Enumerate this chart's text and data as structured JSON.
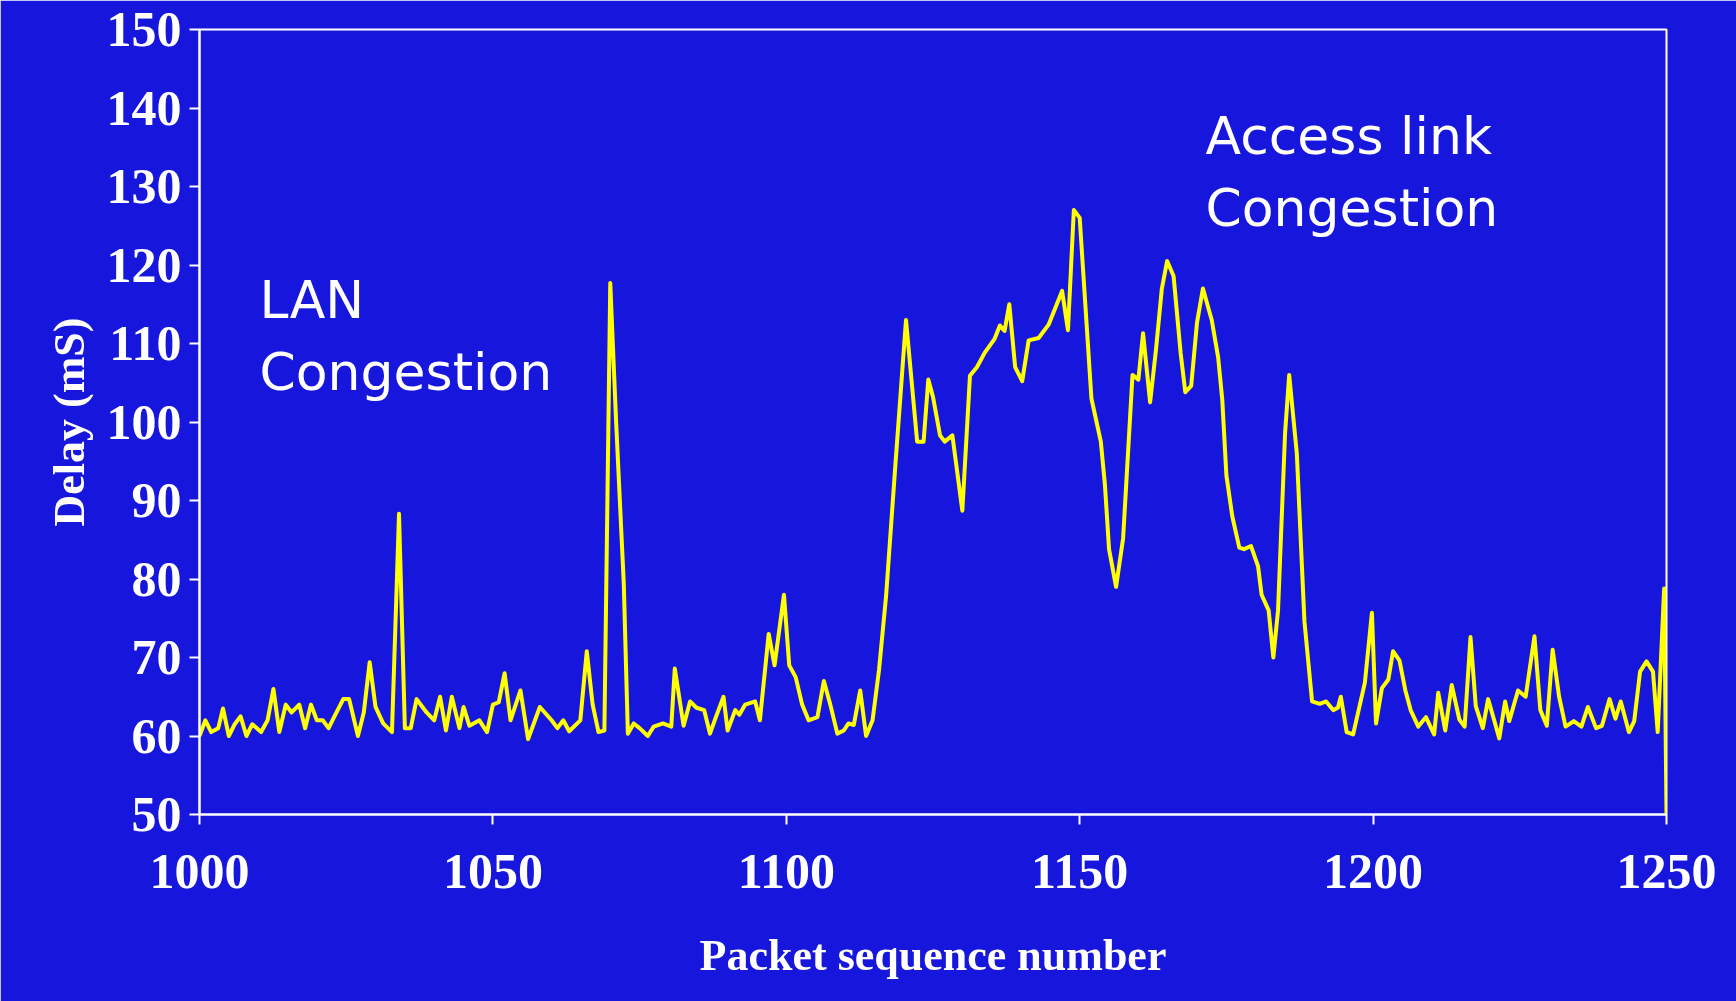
{
  "chart_data": {
    "type": "line",
    "xlabel": "Packet sequence number",
    "ylabel": "Delay (mS)",
    "xlim": [
      1000,
      1250
    ],
    "ylim": [
      50,
      150
    ],
    "xticks": [
      1000,
      1050,
      1100,
      1150,
      1200,
      1250
    ],
    "yticks": [
      50,
      60,
      70,
      80,
      90,
      100,
      110,
      120,
      130,
      140,
      150
    ],
    "grid": false,
    "marker": "none",
    "line_style": "solid",
    "annotations": [
      "LAN\nCongestion",
      "Access link\nCongestion"
    ],
    "series": [
      {
        "color": "#ffff00",
        "x": [
          1000,
          1001,
          1002,
          1003.2,
          1004,
          1005,
          1006,
          1007,
          1008,
          1009,
          1010.5,
          1011.6,
          1012.6,
          1013.6,
          1014.7,
          1015.7,
          1017,
          1018,
          1019,
          1020,
          1021,
          1022,
          1023,
          1024.5,
          1025.5,
          1027,
          1028,
          1029,
          1030,
          1031.3,
          1032.8,
          1034,
          1035,
          1036,
          1037,
          1038.7,
          1040,
          1041,
          1042,
          1043,
          1044.3,
          1045,
          1046,
          1047.7,
          1049,
          1050,
          1051,
          1052,
          1053,
          1054.7,
          1056,
          1058,
          1060,
          1061,
          1062,
          1063,
          1064.9,
          1066,
          1067,
          1068,
          1069,
          1070,
          1071,
          1072.3,
          1073,
          1074,
          1075,
          1076.4,
          1077.4,
          1079,
          1080.4,
          1081,
          1082.5,
          1083.6,
          1084.7,
          1086,
          1087,
          1088,
          1089.3,
          1090,
          1091.3,
          1092,
          1093,
          1094.7,
          1095.5,
          1097,
          1098,
          1099.6,
          1100.5,
          1101.6,
          1102.7,
          1103.8,
          1105.3,
          1106.4,
          1107.5,
          1108.7,
          1109.8,
          1110.6,
          1111.5,
          1112.6,
          1113.6,
          1114.7,
          1115.8,
          1117,
          1118.5,
          1120.4,
          1122.3,
          1123.4,
          1124.2,
          1125,
          1126.2,
          1127,
          1128.3,
          1130,
          1131.3,
          1132.5,
          1133.8,
          1135.5,
          1136.4,
          1137.2,
          1138,
          1139,
          1140.2,
          1141.3,
          1143,
          1144.7,
          1147,
          1148,
          1149,
          1150,
          1152,
          1153.6,
          1154.3,
          1155,
          1156.2,
          1157.4,
          1159,
          1160,
          1160.8,
          1162,
          1163,
          1164,
          1164.9,
          1166,
          1167.2,
          1168,
          1169,
          1170,
          1171,
          1172.5,
          1173.6,
          1174.3,
          1175,
          1176,
          1177.2,
          1178,
          1179.2,
          1180.4,
          1181,
          1182.2,
          1183,
          1183.8,
          1185,
          1185.7,
          1187,
          1188.3,
          1189.6,
          1190.9,
          1192,
          1193.2,
          1194,
          1194.5,
          1195.5,
          1196.6,
          1198.6,
          1199.8,
          1200.5,
          1201.5,
          1202.6,
          1203.4,
          1204.5,
          1205.5,
          1206.4,
          1207.7,
          1209,
          1210.4,
          1211.1,
          1212.3,
          1213.4,
          1214.7,
          1215.6,
          1216.6,
          1217.5,
          1218.7,
          1219.6,
          1220.6,
          1221.5,
          1222.5,
          1223.2,
          1224.7,
          1226,
          1227.5,
          1228.5,
          1229.6,
          1230.6,
          1231.7,
          1232.8,
          1234.2,
          1235.5,
          1236.6,
          1238,
          1239,
          1240.3,
          1241.3,
          1242.2,
          1243.6,
          1244.5,
          1245.5,
          1246.6,
          1247.7,
          1248.5,
          1249.6,
          1250
        ],
        "values": [
          60,
          62,
          60.5,
          61,
          63.5,
          60,
          61.5,
          62.5,
          60,
          61.5,
          60.5,
          62,
          66,
          60.5,
          64,
          63,
          64,
          61,
          64,
          62,
          62,
          61,
          62.5,
          64.7,
          64.7,
          60,
          63,
          69.4,
          63.7,
          61.6,
          60.5,
          88.3,
          61,
          61,
          64.7,
          63,
          62,
          65,
          60.7,
          65,
          61,
          63.7,
          61.3,
          62,
          60.5,
          64,
          64.3,
          68,
          62,
          65.8,
          59.6,
          63.7,
          62,
          61,
          62,
          60.6,
          62,
          70.8,
          64,
          60.5,
          60.7,
          117.7,
          100,
          79.5,
          60.3,
          61.6,
          61,
          60,
          61.2,
          61.6,
          61.2,
          68.6,
          61.3,
          64.4,
          63.6,
          63.3,
          60.3,
          62.4,
          65,
          60.7,
          63.3,
          62.7,
          64,
          64.4,
          62,
          73,
          69,
          78,
          69,
          67.5,
          64,
          62,
          62.4,
          67,
          64,
          60.3,
          60.7,
          61.6,
          61.4,
          65.8,
          60,
          62,
          68.4,
          77.8,
          93.6,
          113,
          97.5,
          97.5,
          105.4,
          103.2,
          98.3,
          97.5,
          98.3,
          88.7,
          105.9,
          107,
          108.8,
          110.6,
          112.3,
          111.6,
          115,
          107,
          105.2,
          110.4,
          110.7,
          112.4,
          116.7,
          111.7,
          127,
          126,
          103,
          97.5,
          92,
          83.8,
          79,
          85.2,
          106,
          105.4,
          111.3,
          102.5,
          109.2,
          117,
          120.5,
          118.6,
          108.8,
          103.8,
          104.6,
          112.7,
          117,
          113,
          108.2,
          102.8,
          93.2,
          88,
          84,
          83.8,
          84.2,
          81.6,
          78,
          76,
          70,
          76,
          98.6,
          106,
          96,
          74.6,
          64.4,
          64.1,
          64.4,
          63.3,
          63.6,
          65,
          60.5,
          60.2,
          66.8,
          75.7,
          61.6,
          66.1,
          67.2,
          70.8,
          69.6,
          65.8,
          63.3,
          61.2,
          62.4,
          60.2,
          65.5,
          60.7,
          66.5,
          62.1,
          61.2,
          72.6,
          63.8,
          61,
          64.7,
          62.1,
          59.7,
          64.4,
          61.9,
          65.8,
          65,
          72.7,
          63.3,
          61.3,
          71,
          65,
          61.2,
          61.9,
          61.2,
          63.7,
          61,
          61.3,
          64.7,
          62.2,
          64.4,
          60.5,
          61.9,
          68.2,
          69.5,
          68.2,
          60.5,
          78.8,
          50
        ]
      }
    ]
  }
}
